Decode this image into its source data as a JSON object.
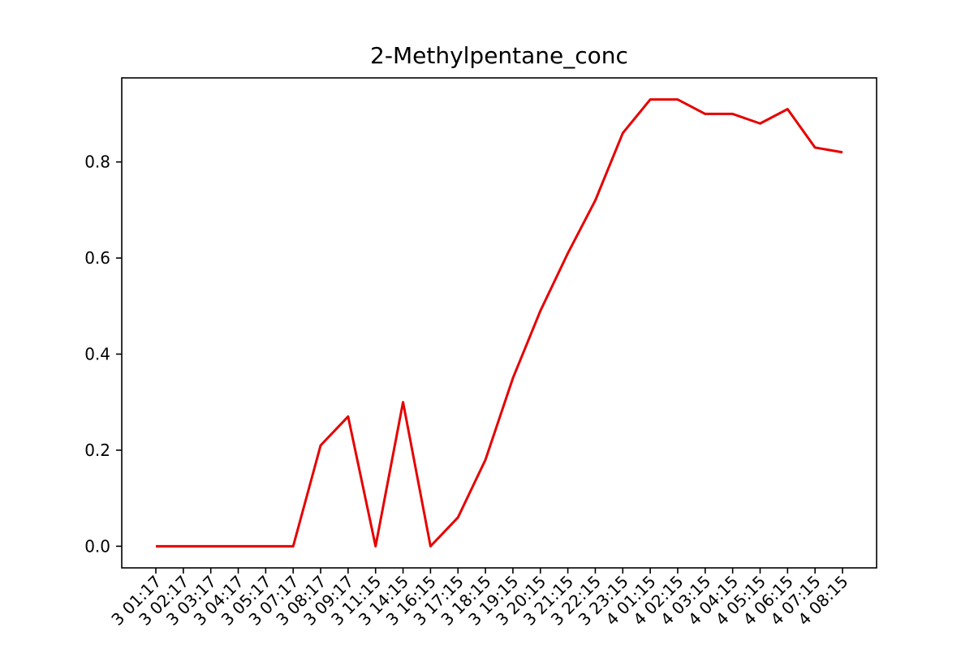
{
  "colors": {
    "line": "#e60000",
    "axis": "#000000",
    "background": "#ffffff"
  },
  "chart_data": {
    "type": "line",
    "title": "2-Methylpentane_conc",
    "xlabel": "",
    "ylabel": "",
    "grid": false,
    "ylim": [
      -0.045,
      0.975
    ],
    "yticks": [
      0.0,
      0.2,
      0.4,
      0.6,
      0.8
    ],
    "ytick_labels": [
      "0.0",
      "0.2",
      "0.4",
      "0.6",
      "0.8"
    ],
    "x_tick_labels": [
      "3 01:17",
      "3 02:17",
      "3 03:17",
      "3 04:17",
      "3 05:17",
      "3 07:17",
      "3 08:17",
      "3 09:17",
      "3 11:15",
      "3 14:15",
      "3 16:15",
      "3 17:15",
      "3 18:15",
      "3 19:15",
      "3 20:15",
      "3 21:15",
      "3 22:15",
      "3 23:15",
      "4 01:15",
      "4 02:15",
      "4 03:15",
      "4 04:15",
      "4 05:15",
      "4 06:15",
      "4 07:15",
      "4 08:15"
    ],
    "series": [
      {
        "name": "2-Methylpentane_conc",
        "values": [
          0.0,
          0.0,
          0.0,
          0.0,
          0.0,
          0.0,
          0.21,
          0.27,
          0.0,
          0.3,
          0.0,
          0.06,
          0.18,
          0.35,
          0.49,
          0.61,
          0.72,
          0.86,
          0.93,
          0.93,
          0.9,
          0.9,
          0.88,
          0.91,
          0.83,
          0.82
        ]
      }
    ]
  }
}
